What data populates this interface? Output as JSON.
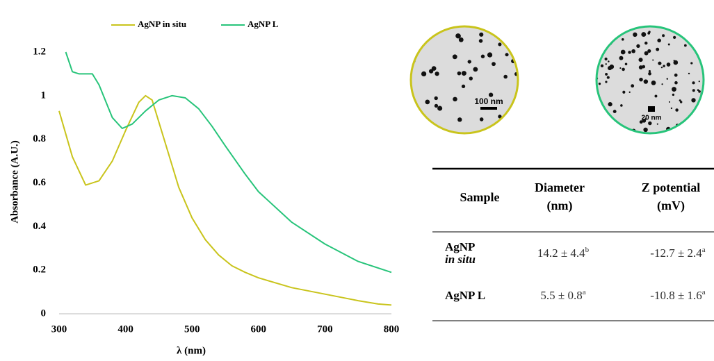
{
  "chart_data": {
    "type": "line",
    "x_label": "λ (nm)",
    "y_label": "Absorbance (A.U.)",
    "xlim": [
      300,
      800
    ],
    "xticks": [
      300,
      400,
      500,
      600,
      700,
      800
    ],
    "ylim": [
      0,
      1.2
    ],
    "yticks": [
      0,
      0.2,
      0.4,
      0.6,
      0.8,
      1,
      1.2
    ],
    "series": [
      {
        "name": "AgNP in situ",
        "color": "#c9c41c",
        "x": [
          300,
          320,
          340,
          360,
          380,
          400,
          420,
          430,
          440,
          460,
          480,
          500,
          520,
          540,
          560,
          580,
          600,
          650,
          700,
          750,
          780,
          800
        ],
        "values": [
          0.93,
          0.72,
          0.59,
          0.61,
          0.7,
          0.84,
          0.97,
          1.0,
          0.98,
          0.78,
          0.58,
          0.44,
          0.34,
          0.27,
          0.22,
          0.19,
          0.165,
          0.12,
          0.09,
          0.06,
          0.045,
          0.04
        ]
      },
      {
        "name": "AgNP L",
        "color": "#27c47a",
        "x": [
          310,
          320,
          330,
          350,
          360,
          380,
          395,
          410,
          430,
          450,
          470,
          490,
          510,
          530,
          550,
          580,
          600,
          650,
          700,
          750,
          800
        ],
        "values": [
          1.2,
          1.11,
          1.1,
          1.1,
          1.05,
          0.9,
          0.85,
          0.87,
          0.93,
          0.98,
          1.0,
          0.99,
          0.94,
          0.86,
          0.77,
          0.64,
          0.56,
          0.42,
          0.32,
          0.24,
          0.19
        ]
      }
    ]
  },
  "images": [
    {
      "scale_label": "100 nm",
      "color": "#c9c41c"
    },
    {
      "scale_label": "20 nm",
      "color": "#27c47a"
    }
  ],
  "table": {
    "header": [
      [
        "Sample"
      ],
      [
        "Diameter",
        "(nm)"
      ],
      [
        "Z potential",
        "(mV)"
      ]
    ],
    "rows": [
      {
        "sample": "AgNP",
        "sample_italic": "in situ",
        "diameter": "14.2 ± 4.4",
        "diameter_sup": "b",
        "zeta": "-12.7 ± 2.4",
        "zeta_sup": "a"
      },
      {
        "sample": "AgNP L",
        "diameter": "5.5 ± 0.8",
        "diameter_sup": "a",
        "zeta": "-10.8 ± 1.6",
        "zeta_sup": "a"
      }
    ]
  }
}
